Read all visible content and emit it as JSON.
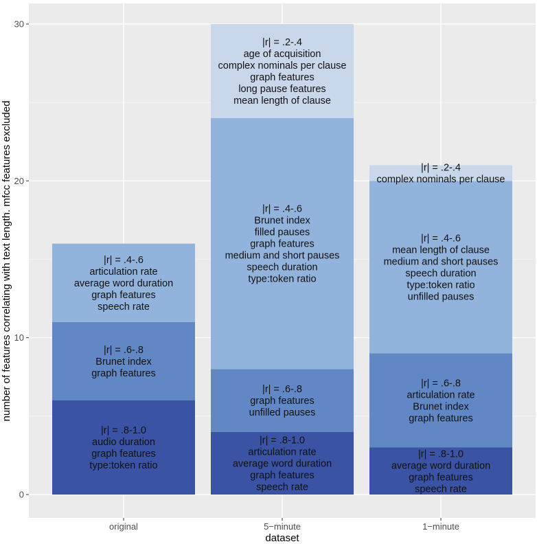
{
  "chart_data": {
    "type": "bar",
    "stacked": true,
    "title": "",
    "xlabel": "dataset",
    "ylabel": "number of features correlating with text length. mfcc features excluded",
    "ylim": [
      0,
      30
    ],
    "yticks": [
      "0",
      "10",
      "20",
      "30"
    ],
    "grid": true,
    "categories": [
      "original",
      "5−minute",
      "1−minute"
    ],
    "series": [
      {
        "name": "|r| = .8-1.0",
        "color": "#3a53a4",
        "values": [
          6,
          4,
          3
        ],
        "labels": [
          [
            "|r| = .8-1.0",
            "audio duration",
            "graph features",
            "type:token ratio"
          ],
          [
            "|r| = .8-1.0",
            "articulation rate",
            "average word duration",
            "graph features",
            "speech rate"
          ],
          [
            "|r| = .8-1.0",
            "average word duration",
            "graph features",
            "speech rate"
          ]
        ]
      },
      {
        "name": "|r| = .6-.8",
        "color": "#6188c5",
        "values": [
          5,
          4,
          6
        ],
        "labels": [
          [
            "|r| = .6-.8",
            "Brunet index",
            "graph features"
          ],
          [
            "|r| = .6-.8",
            "graph features",
            "unfilled pauses"
          ],
          [
            "|r| = .6-.8",
            "articulation rate",
            "Brunet index",
            "graph features"
          ]
        ]
      },
      {
        "name": "|r| = .4-.6",
        "color": "#92b3dc",
        "values": [
          5,
          16,
          11
        ],
        "labels": [
          [
            "|r| = .4-.6",
            "articulation rate",
            "average word duration",
            "graph features",
            "speech rate"
          ],
          [
            "|r| = .4-.6",
            "Brunet index",
            "filled pauses",
            "graph features",
            "medium and short pauses",
            "speech duration",
            "type:token ratio"
          ],
          [
            "|r| = .4-.6",
            "mean length of clause",
            "medium and short pauses",
            "speech duration",
            "type:token ratio",
            "unfilled pauses"
          ]
        ]
      },
      {
        "name": "|r| = .2-.4",
        "color": "#c8d8ea",
        "values": [
          0,
          6,
          1
        ],
        "labels": [
          [],
          [
            "|r| = .2-.4",
            "age of acquisition",
            "complex nominals per clause",
            "graph features",
            "long pause features",
            "mean length of clause"
          ],
          [
            "|r| = .2-.4",
            "complex nominals per clause"
          ]
        ]
      }
    ]
  }
}
